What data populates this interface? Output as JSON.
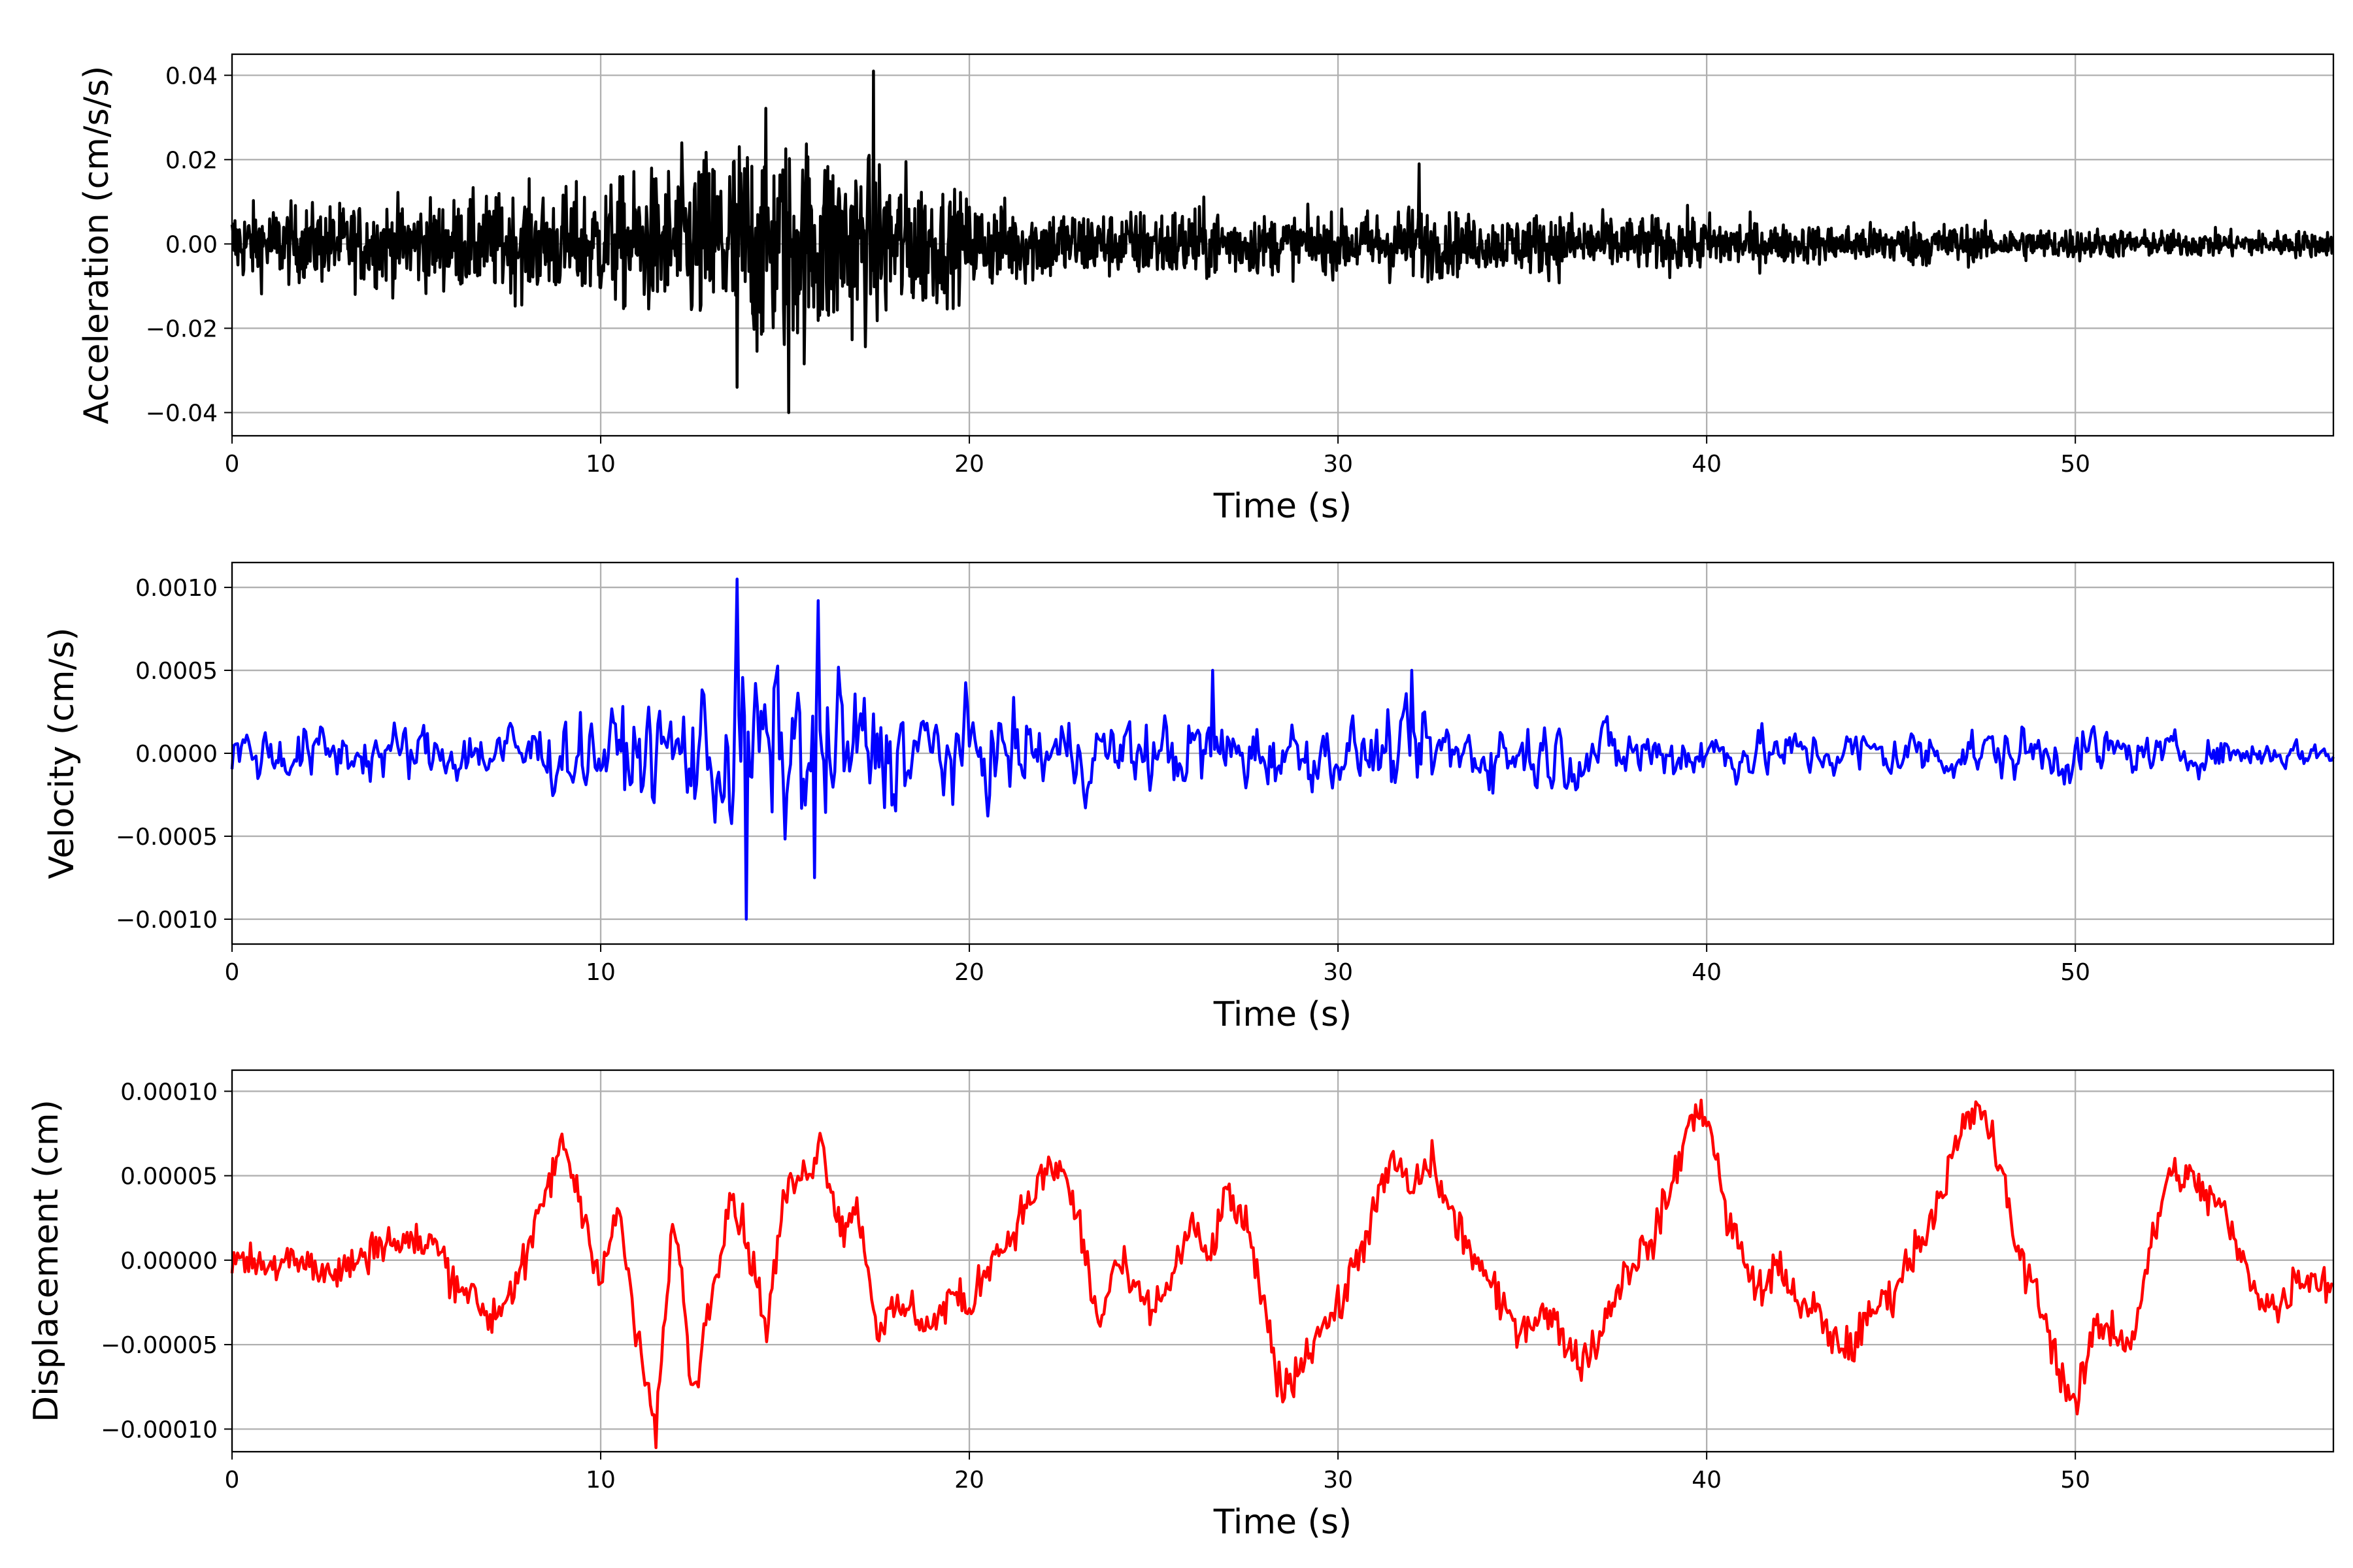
{
  "chart_data": [
    {
      "type": "line",
      "title": "",
      "xlabel": "Time (s)",
      "ylabel": "Acceleration (cm/s/s)",
      "color": "#000000",
      "xlim": [
        0,
        57
      ],
      "ylim": [
        -0.0455,
        0.045
      ],
      "grid": true,
      "xticks": [
        0,
        10,
        20,
        30,
        40,
        50
      ],
      "xtick_labels": [
        "0",
        "10",
        "20",
        "30",
        "40",
        "50"
      ],
      "yticks": [
        -0.04,
        -0.02,
        0,
        0.02,
        0.04
      ],
      "ytick_labels": [
        "−0.04",
        "−0.02",
        "0.00",
        "0.02",
        "0.04"
      ],
      "envelope_step_s": 2,
      "envelope_abs": [
        0.012,
        0.012,
        0.013,
        0.014,
        0.016,
        0.018,
        0.025,
        0.035,
        0.032,
        0.025,
        0.014,
        0.012,
        0.01,
        0.012,
        0.009,
        0.009,
        0.012,
        0.008,
        0.01,
        0.008,
        0.009,
        0.006,
        0.006,
        0.007,
        0.005,
        0.005,
        0.004,
        0.004,
        0.004
      ],
      "peaks": [
        {
          "t": 17.4,
          "v": 0.041
        },
        {
          "t": 15.1,
          "v": -0.04
        },
        {
          "t": 13.7,
          "v": -0.034
        },
        {
          "t": 32.2,
          "v": 0.019
        }
      ]
    },
    {
      "type": "line",
      "title": "",
      "xlabel": "Time (s)",
      "ylabel": "Velocity (cm/s)",
      "color": "#0000ff",
      "xlim": [
        0,
        57
      ],
      "ylim": [
        -0.00115,
        0.00115
      ],
      "grid": true,
      "xticks": [
        0,
        10,
        20,
        30,
        40,
        50
      ],
      "xtick_labels": [
        "0",
        "10",
        "20",
        "30",
        "40",
        "50"
      ],
      "yticks": [
        -0.001,
        -0.0005,
        0,
        0.0005,
        0.001
      ],
      "ytick_labels": [
        "−0.0010",
        "−0.0005",
        "0.0000",
        "0.0005",
        "0.0010"
      ],
      "envelope_step_s": 2,
      "envelope_abs": [
        0.00025,
        0.00025,
        0.00025,
        0.00025,
        0.0003,
        0.00035,
        0.0005,
        0.0008,
        0.0007,
        0.0005,
        0.0004,
        0.00035,
        0.0003,
        0.00035,
        0.0003,
        0.00025,
        0.00035,
        0.0003,
        0.0003,
        0.00025,
        0.00025,
        0.0002,
        0.00022,
        0.00022,
        0.00022,
        0.00025,
        0.00015,
        0.00015,
        0.00012
      ],
      "peaks": [
        {
          "t": 13.7,
          "v": 0.00105
        },
        {
          "t": 13.95,
          "v": -0.001
        },
        {
          "t": 15.9,
          "v": 0.00092
        },
        {
          "t": 15.8,
          "v": -0.00075
        },
        {
          "t": 26.6,
          "v": 0.0005
        },
        {
          "t": 32.0,
          "v": 0.0005
        }
      ]
    },
    {
      "type": "line",
      "title": "",
      "xlabel": "Time (s)",
      "ylabel": "Displacement (cm)",
      "color": "#ff0000",
      "xlim": [
        0,
        57
      ],
      "ylim": [
        -0.0001134,
        0.0001125
      ],
      "grid": true,
      "xticks": [
        0,
        10,
        20,
        30,
        40,
        50
      ],
      "xtick_labels": [
        "0",
        "10",
        "20",
        "30",
        "40",
        "50"
      ],
      "yticks": [
        -0.0001,
        -5e-05,
        0,
        5e-05,
        0.0001
      ],
      "ytick_labels": [
        "−0.00010",
        "−0.00005",
        "0.00000",
        "0.00005",
        "0.00010"
      ],
      "x_step_s": 0.5,
      "values_1e-5_cm": [
        0,
        0,
        -0.5,
        0.5,
        0,
        -1,
        -0.5,
        0,
        1.2,
        1,
        1,
        1,
        -1,
        -2,
        -3.5,
        -2,
        0,
        4,
        7,
        3,
        -1,
        3,
        -5,
        -10,
        3,
        -8,
        -2,
        4,
        1,
        -4,
        4,
        5,
        7,
        2,
        3,
        -4,
        -3,
        -3,
        -4,
        -2,
        -3,
        0,
        1,
        3,
        5,
        5.5,
        2,
        -4,
        0,
        -2,
        -3,
        -1,
        2,
        0,
        4,
        2,
        -3,
        -8,
        -6,
        -4,
        -3,
        0,
        3,
        6,
        4,
        6,
        3,
        1,
        -1,
        -3,
        -4,
        -3,
        -4,
        -6,
        -5,
        -2,
        0,
        1,
        4,
        8,
        9,
        3,
        0,
        -2,
        0,
        -3,
        -3,
        -5,
        -5,
        -3,
        -2,
        0,
        2,
        5,
        8,
        9,
        5,
        0,
        -2,
        -6,
        -9,
        -4,
        -4,
        -5,
        0,
        5,
        5,
        4,
        3,
        0,
        -2,
        -3,
        -1,
        -1,
        -1.5
      ]
    }
  ]
}
